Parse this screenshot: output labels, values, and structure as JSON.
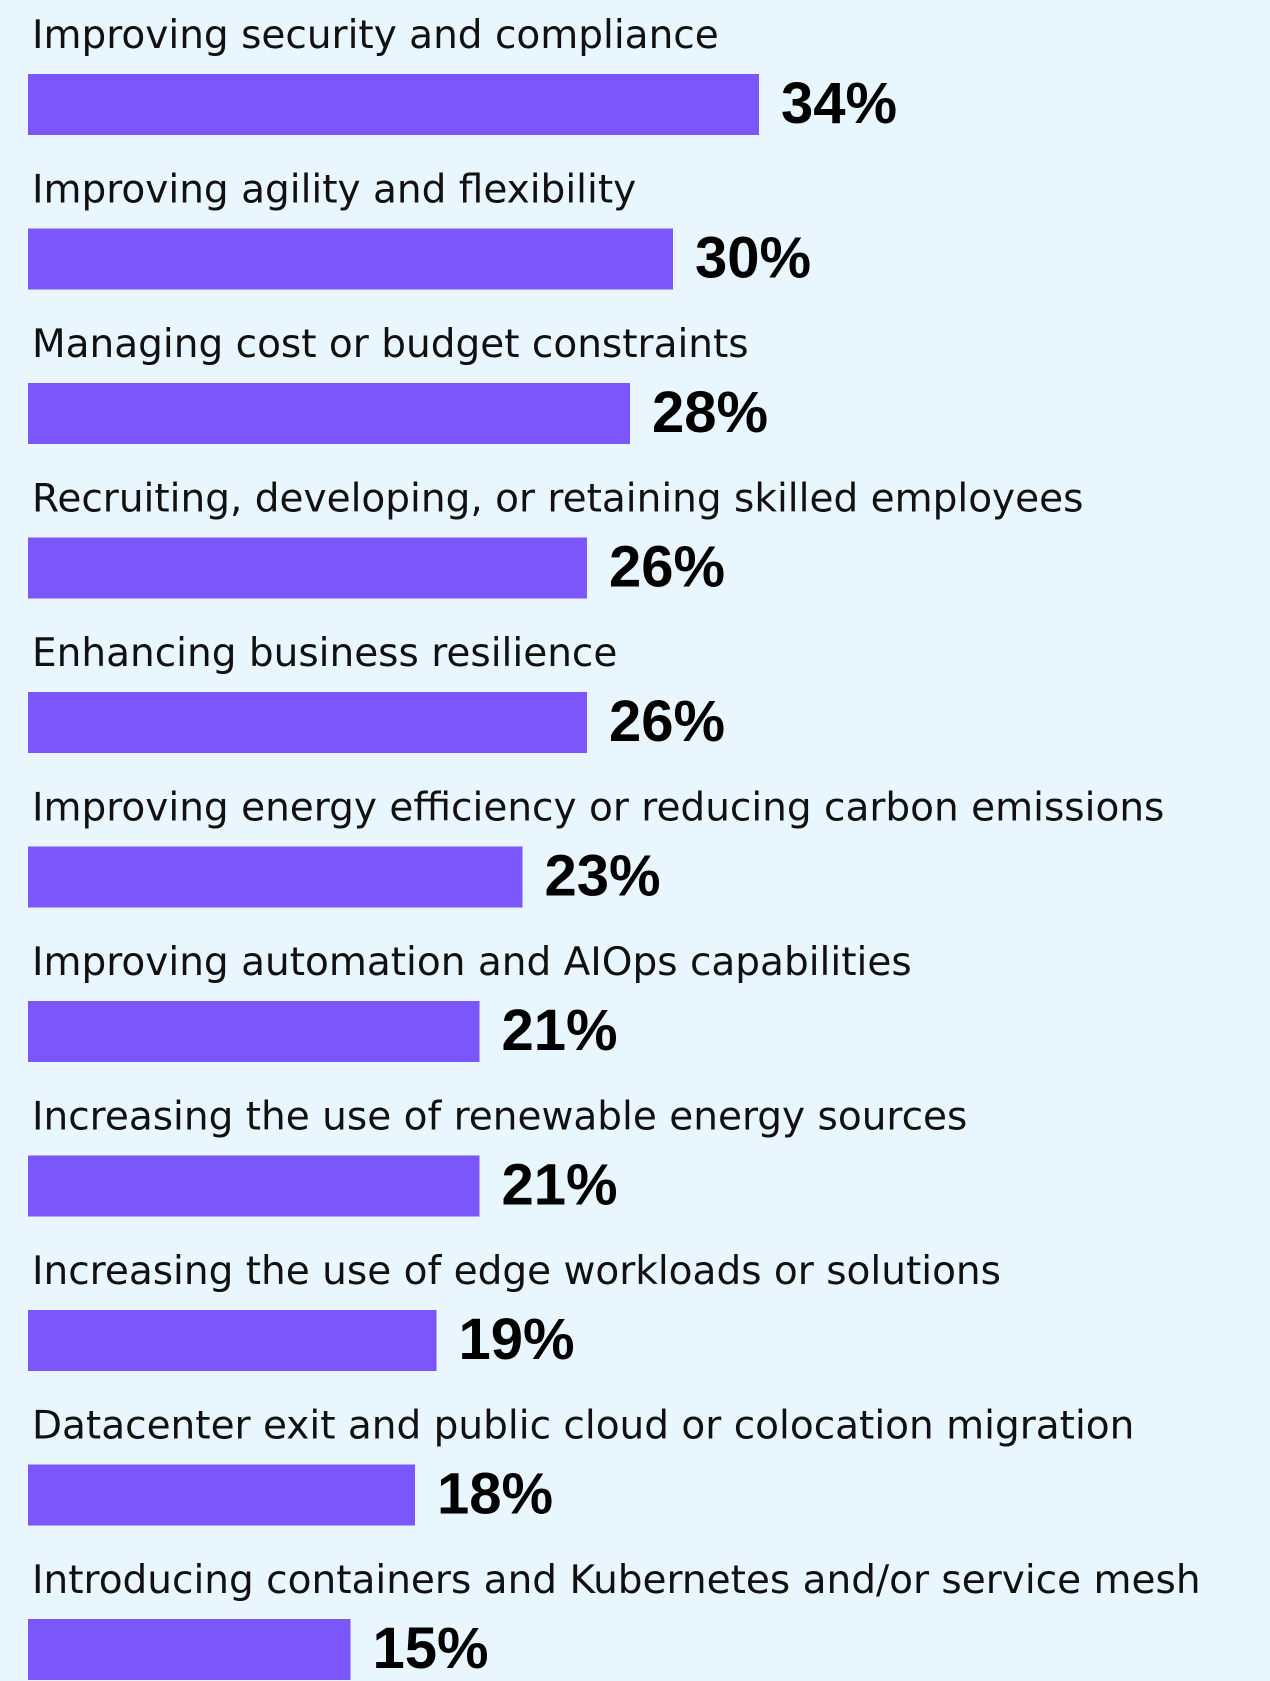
{
  "chart_data": {
    "type": "barh",
    "categories": [
      "Improving security and compliance",
      "Improving agility and flexibility",
      "Managing cost or budget constraints",
      "Recruiting, developing, or retaining skilled employees",
      "Enhancing business resilience",
      "Improving energy efficiency or reducing carbon emissions",
      "Improving automation and AIOps capabilities",
      "Increasing the use of renewable energy sources",
      "Increasing the use of edge workloads or solutions",
      "Datacenter exit and public cloud or colocation migration",
      "Introducing containers and Kubernetes and/or service mesh"
    ],
    "values": [
      34,
      30,
      28,
      26,
      26,
      23,
      21,
      21,
      19,
      18,
      15
    ],
    "value_labels": [
      "34%",
      "30%",
      "28%",
      "26%",
      "26%",
      "23%",
      "21%",
      "21%",
      "19%",
      "18%",
      "15%"
    ],
    "color": "#7b57fb"
  }
}
